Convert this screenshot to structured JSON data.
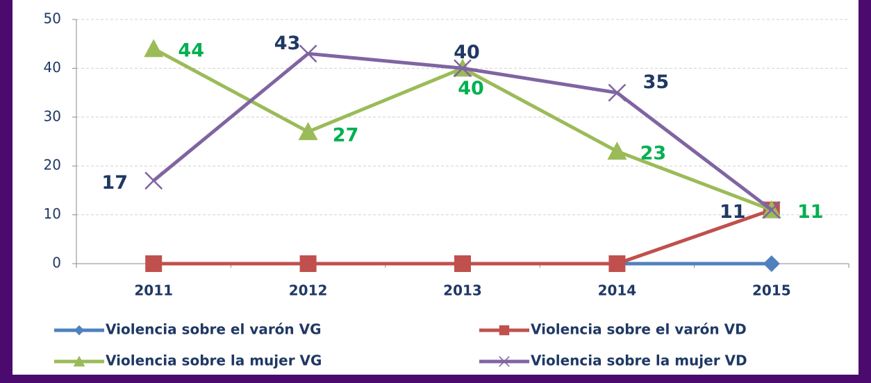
{
  "chart_data": {
    "type": "line",
    "categories": [
      "2011",
      "2012",
      "2013",
      "2014",
      "2015"
    ],
    "series": [
      {
        "name": "Violencia sobre el varón VG",
        "color": "#4f81bd",
        "marker": "diamond",
        "values": [
          0,
          0,
          0,
          0,
          0
        ]
      },
      {
        "name": "Violencia sobre el varón VD",
        "color": "#c0504d",
        "marker": "square",
        "values": [
          0,
          0,
          0,
          0,
          11
        ]
      },
      {
        "name": "Violencia sobre la mujer VG",
        "color": "#9bbb59",
        "marker": "triangle",
        "label_color": "#00b050",
        "values": [
          44,
          27,
          40,
          23,
          11
        ]
      },
      {
        "name": "Violencia sobre la mujer VD",
        "color": "#8064a2",
        "marker": "x",
        "label_color": "#1f3864",
        "values": [
          17,
          43,
          40,
          35,
          11
        ]
      }
    ],
    "ylim": [
      0,
      50
    ],
    "yticks": [
      0,
      10,
      20,
      30,
      40,
      50
    ],
    "grid": true,
    "legend": "bottom"
  }
}
